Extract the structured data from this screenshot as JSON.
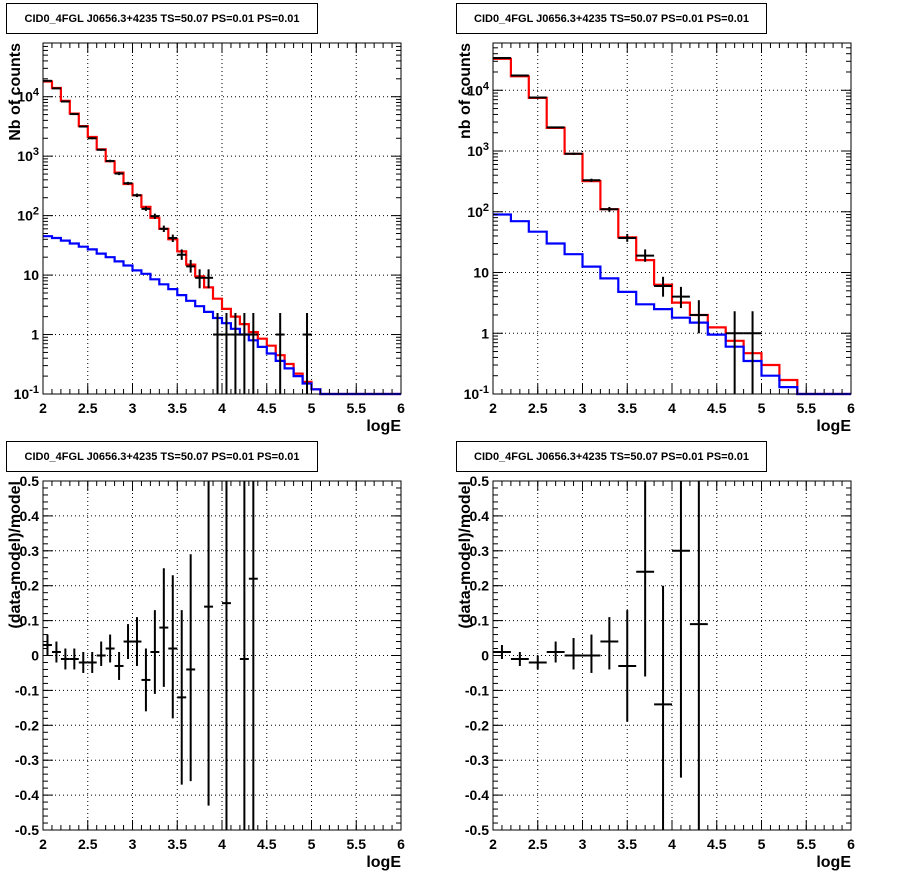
{
  "panels": [
    {
      "title": "CID0_4FGL J0656.3+4235 TS=50.07 PS=0.01 PS=0.01",
      "xlabel": "logE",
      "ylabel": "Nb of counts",
      "chart_data": {
        "type": "line",
        "log_y": true,
        "xlim": [
          2,
          6
        ],
        "ylim": [
          0.1,
          80000
        ],
        "xticks": [
          "2",
          "2.5",
          "3",
          "3.5",
          "4",
          "4.5",
          "5",
          "5.5",
          "6"
        ],
        "yticks": [
          "10^{-1}",
          "1",
          "10",
          "10^{2}",
          "10^{3}",
          "10^{4}"
        ],
        "grid": true,
        "bin_edges": [
          2.0,
          2.1,
          2.2,
          2.3,
          2.4,
          2.5,
          2.6,
          2.7,
          2.8,
          2.9,
          3.0,
          3.1,
          3.2,
          3.3,
          3.4,
          3.5,
          3.6,
          3.7,
          3.8,
          3.9,
          4.0,
          4.1,
          4.2,
          4.3,
          4.4,
          4.5,
          4.6,
          4.7,
          4.8,
          4.9,
          5.0,
          5.1,
          5.2,
          5.3,
          5.4,
          5.5,
          5.6,
          5.7,
          5.8,
          5.9,
          6.0
        ],
        "series": [
          {
            "color": "#ff0000",
            "style": "step",
            "values": [
              18000,
              14000,
              8500,
              5200,
              3200,
              2100,
              1300,
              820,
              530,
              340,
              220,
              140,
              92,
              60,
              40,
              25,
              15,
              9.5,
              6.2,
              4.0,
              2.7,
              2.0,
              1.5,
              1.1,
              0.85,
              0.65,
              0.45,
              0.32,
              0.22,
              0.16,
              0.12,
              0.1,
              0.1,
              0.1,
              0.1,
              0.1,
              0.1,
              0.1,
              0.1,
              0.1
            ]
          },
          {
            "color": "#0000ff",
            "style": "step",
            "values": [
              45,
              42,
              38,
              34,
              30,
              27,
              23,
              20,
              17,
              14.5,
              12,
              10.5,
              8.5,
              7,
              5.8,
              4.6,
              3.7,
              3.0,
              2.4,
              1.9,
              1.55,
              1.25,
              1.0,
              0.8,
              0.62,
              0.48,
              0.36,
              0.27,
              0.2,
              0.15,
              0.12,
              0.1,
              0.1,
              0.1,
              0.1,
              0.1,
              0.1,
              0.1,
              0.1,
              0.1
            ]
          },
          {
            "color": "#000000",
            "style": "errorbars",
            "x": [
              2.05,
              2.15,
              2.25,
              2.35,
              2.45,
              2.55,
              2.65,
              2.75,
              2.85,
              2.95,
              3.05,
              3.15,
              3.25,
              3.35,
              3.45,
              3.55,
              3.65,
              3.75,
              3.85,
              3.95,
              4.05,
              4.15,
              4.25,
              4.35,
              4.65,
              4.95
            ],
            "xerr": 0.05,
            "y": [
              18500,
              13800,
              8300,
              5100,
              3150,
              2000,
              1280,
              830,
              510,
              350,
              220,
              130,
              98,
              60,
              42,
              22,
              14,
              9,
              9,
              1,
              1,
              1,
              1,
              1,
              1,
              1
            ],
            "ylow": [
              18200,
              13500,
              8100,
              4950,
              3050,
              1920,
              1230,
              790,
              480,
              330,
              205,
              120,
              88,
              53,
              36,
              18,
              11,
              6,
              6,
              0.1,
              0.1,
              0.1,
              0.1,
              0.1,
              0.1,
              0.1
            ],
            "yhigh": [
              18800,
              14100,
              8500,
              5250,
              3250,
              2080,
              1330,
              870,
              540,
              370,
              235,
              142,
              108,
              68,
              48,
              27,
              18,
              12.5,
              12.5,
              2.3,
              2.3,
              2.3,
              2.3,
              2.3,
              2.3,
              2.3
            ]
          }
        ]
      }
    },
    {
      "title": "CID0_4FGL J0656.3+4235 TS=50.07 PS=0.01 PS=0.01",
      "xlabel": "logE",
      "ylabel": "nb of counts",
      "chart_data": {
        "type": "line",
        "log_y": true,
        "xlim": [
          2,
          6
        ],
        "ylim": [
          0.1,
          60000
        ],
        "xticks": [
          "2",
          "2.5",
          "3",
          "3.5",
          "4",
          "4.5",
          "5",
          "5.5",
          "6"
        ],
        "yticks": [
          "10^{-1}",
          "1",
          "10",
          "10^{2}",
          "10^{3}",
          "10^{4}"
        ],
        "grid": true,
        "bin_edges": [
          2.0,
          2.2,
          2.4,
          2.6,
          2.8,
          3.0,
          3.2,
          3.4,
          3.6,
          3.8,
          4.0,
          4.2,
          4.4,
          4.6,
          4.8,
          5.0,
          5.2,
          5.4,
          5.6,
          5.8,
          6.0
        ],
        "series": [
          {
            "color": "#ff0000",
            "style": "step",
            "values": [
              33000,
              17000,
              7500,
              2400,
              900,
              320,
              110,
              38,
              16,
              6.3,
              3.2,
              2.0,
              1.25,
              0.75,
              0.47,
              0.3,
              0.17,
              0.1,
              0.1,
              0.1
            ]
          },
          {
            "color": "#0000ff",
            "style": "step",
            "values": [
              90,
              70,
              47,
              30,
              20,
              12.5,
              8.0,
              4.8,
              3.0,
              2.5,
              1.8,
              1.5,
              0.95,
              0.6,
              0.35,
              0.2,
              0.13,
              0.1,
              0.1,
              0.1
            ]
          },
          {
            "color": "#000000",
            "style": "errorbars",
            "x": [
              2.1,
              2.3,
              2.5,
              2.7,
              2.9,
              3.1,
              3.3,
              3.5,
              3.7,
              3.9,
              4.1,
              4.3,
              4.7,
              4.9
            ],
            "xerr": 0.1,
            "y": [
              34000,
              17500,
              7600,
              2450,
              900,
              330,
              110,
              37,
              19,
              6,
              4,
              2,
              1,
              1
            ],
            "ylow": [
              33600,
              17200,
              7450,
              2380,
              860,
              310,
              100,
              32,
              15,
              4,
              2.6,
              1,
              0.1,
              0.1
            ],
            "yhigh": [
              34400,
              17800,
              7750,
              2520,
              940,
              350,
              120,
              43,
              24,
              8.5,
              5.8,
              3.5,
              2.3,
              2.3
            ]
          }
        ]
      }
    },
    {
      "title": "CID0_4FGL J0656.3+4235 TS=50.07 PS=0.01 PS=0.01",
      "xlabel": "logE",
      "ylabel": "(data-model)/model",
      "chart_data": {
        "type": "scatter",
        "log_y": false,
        "xlim": [
          2,
          6
        ],
        "ylim": [
          -0.5,
          0.5
        ],
        "xticks": [
          "2",
          "2.5",
          "3",
          "3.5",
          "4",
          "4.5",
          "5",
          "5.5",
          "6"
        ],
        "yticks": [
          "-0.5",
          "-0.4",
          "-0.3",
          "-0.2",
          "-0.1",
          "0",
          "0.1",
          "0.2",
          "0.3",
          "0.4",
          "0.5"
        ],
        "grid": true,
        "series": [
          {
            "color": "#000000",
            "style": "errorbars",
            "x": [
              2.05,
              2.15,
              2.25,
              2.35,
              2.45,
              2.55,
              2.65,
              2.75,
              2.85,
              2.95,
              3.05,
              3.15,
              3.25,
              3.35,
              3.45,
              3.55,
              3.65,
              3.85,
              4.05,
              4.25,
              4.35
            ],
            "xerr": 0.05,
            "y": [
              0.03,
              0.01,
              -0.01,
              -0.01,
              -0.02,
              -0.02,
              0.0,
              0.02,
              -0.03,
              0.04,
              0.04,
              -0.07,
              0.01,
              0.08,
              0.02,
              -0.12,
              -0.04,
              0.14,
              0.15,
              -0.01,
              0.22
            ],
            "ylow": [
              0.0,
              -0.02,
              -0.04,
              -0.04,
              -0.05,
              -0.05,
              -0.03,
              -0.02,
              -0.07,
              -0.01,
              -0.03,
              -0.16,
              -0.11,
              -0.09,
              -0.18,
              -0.37,
              -0.36,
              -0.43,
              -0.5,
              -0.5,
              -0.5
            ],
            "yhigh": [
              0.06,
              0.04,
              0.02,
              0.02,
              0.01,
              0.01,
              0.04,
              0.06,
              0.01,
              0.09,
              0.11,
              0.02,
              0.13,
              0.25,
              0.23,
              0.13,
              0.29,
              0.5,
              0.5,
              0.5,
              0.5
            ]
          }
        ]
      }
    },
    {
      "title": "CID0_4FGL J0656.3+4235 TS=50.07 PS=0.01 PS=0.01",
      "xlabel": "logE",
      "ylabel": "(data-model)/model",
      "chart_data": {
        "type": "scatter",
        "log_y": false,
        "xlim": [
          2,
          6
        ],
        "ylim": [
          -0.5,
          0.5
        ],
        "xticks": [
          "2",
          "2.5",
          "3",
          "3.5",
          "4",
          "4.5",
          "5",
          "5.5",
          "6"
        ],
        "yticks": [
          "-0.5",
          "-0.4",
          "-0.3",
          "-0.2",
          "-0.1",
          "0",
          "0.1",
          "0.2",
          "0.3",
          "0.4",
          "0.5"
        ],
        "grid": true,
        "series": [
          {
            "color": "#000000",
            "style": "errorbars",
            "x": [
              2.1,
              2.3,
              2.5,
              2.7,
              2.9,
              3.1,
              3.3,
              3.5,
              3.7,
              3.9,
              4.1,
              4.3
            ],
            "xerr": 0.1,
            "y": [
              0.01,
              -0.01,
              -0.02,
              0.01,
              0.0,
              0.0,
              0.04,
              -0.03,
              0.24,
              -0.14,
              0.3,
              0.09
            ],
            "ylow": [
              -0.01,
              -0.03,
              -0.04,
              -0.02,
              -0.04,
              -0.05,
              -0.04,
              -0.19,
              -0.06,
              -0.5,
              -0.35,
              -0.5
            ],
            "yhigh": [
              0.03,
              0.01,
              0.0,
              0.04,
              0.05,
              0.06,
              0.11,
              0.13,
              0.5,
              0.2,
              0.5,
              0.5
            ]
          }
        ]
      }
    }
  ]
}
